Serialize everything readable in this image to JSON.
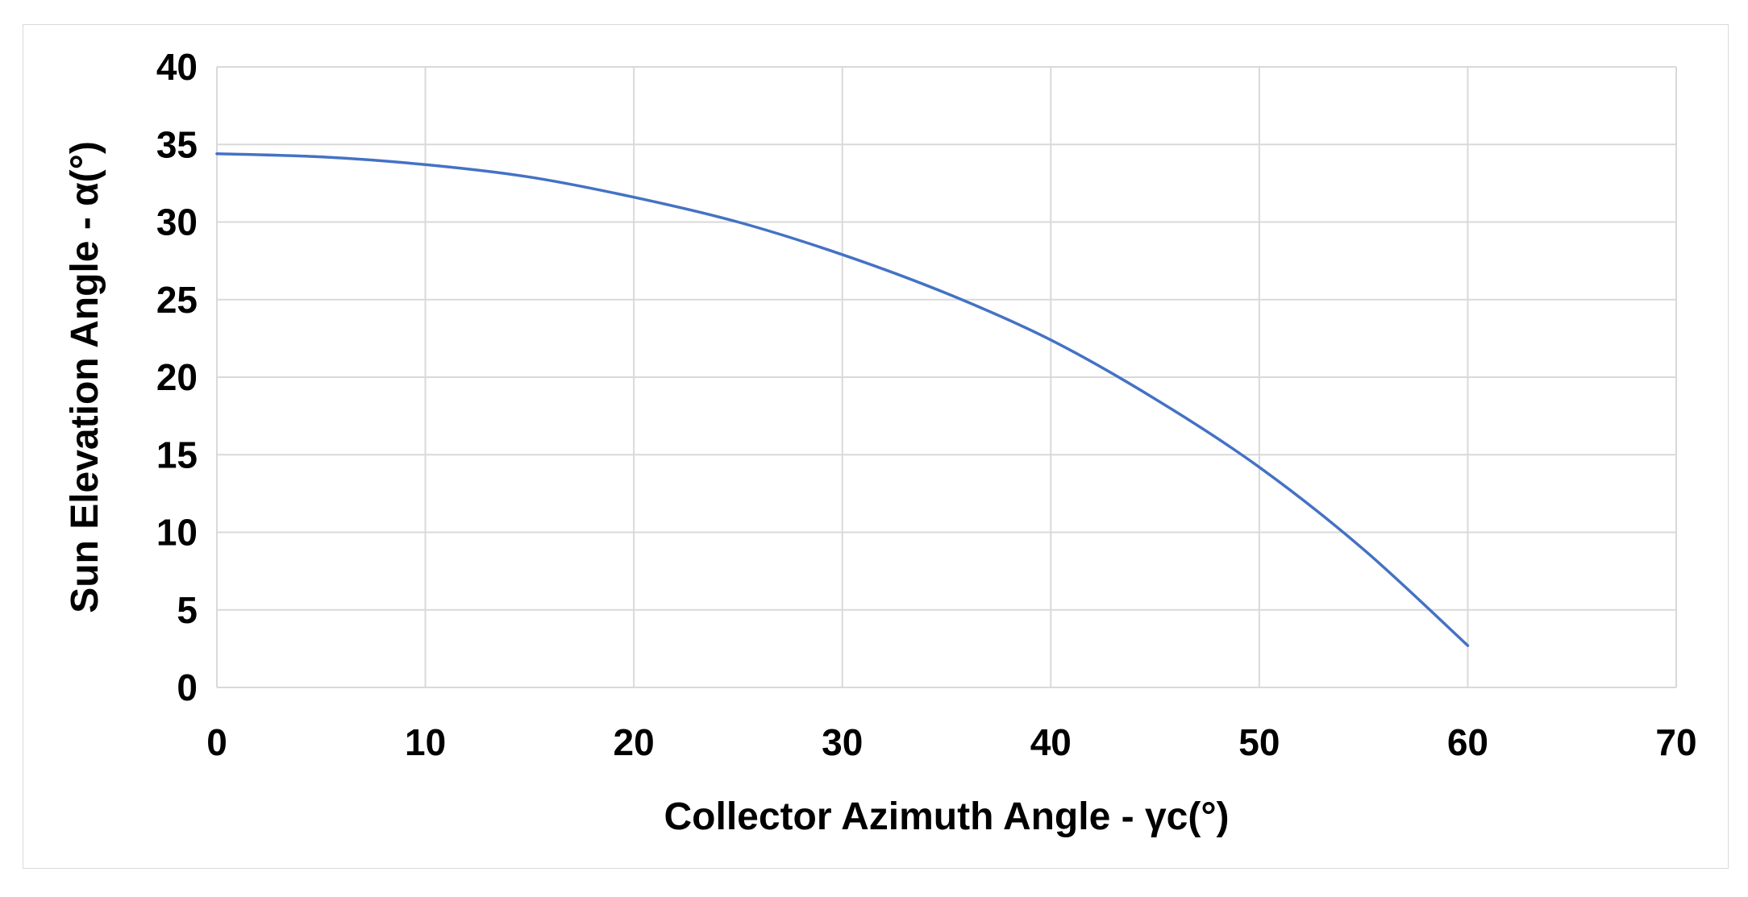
{
  "chart_data": {
    "type": "line",
    "title": "",
    "xlabel": "Collector Azimuth Angle - γc(°)",
    "ylabel": "Sun Elevation Angle - α(°)",
    "xlim": [
      0,
      70
    ],
    "ylim": [
      0,
      40
    ],
    "x_ticks": [
      0,
      10,
      20,
      30,
      40,
      50,
      60,
      70
    ],
    "y_ticks": [
      0,
      5,
      10,
      15,
      20,
      25,
      30,
      35,
      40
    ],
    "grid": true,
    "legend": "none",
    "colors": {
      "line": "#4472c4",
      "grid": "#d9d9d9",
      "frame": "#d9d9d9"
    },
    "series": [
      {
        "x": [
          0,
          5,
          10,
          15,
          20,
          25,
          30,
          35,
          40,
          45,
          50,
          55,
          60
        ],
        "y": [
          34.4,
          34.2,
          33.7,
          32.9,
          31.6,
          30.0,
          27.9,
          25.4,
          22.4,
          18.6,
          14.2,
          8.9,
          2.7
        ]
      }
    ]
  }
}
